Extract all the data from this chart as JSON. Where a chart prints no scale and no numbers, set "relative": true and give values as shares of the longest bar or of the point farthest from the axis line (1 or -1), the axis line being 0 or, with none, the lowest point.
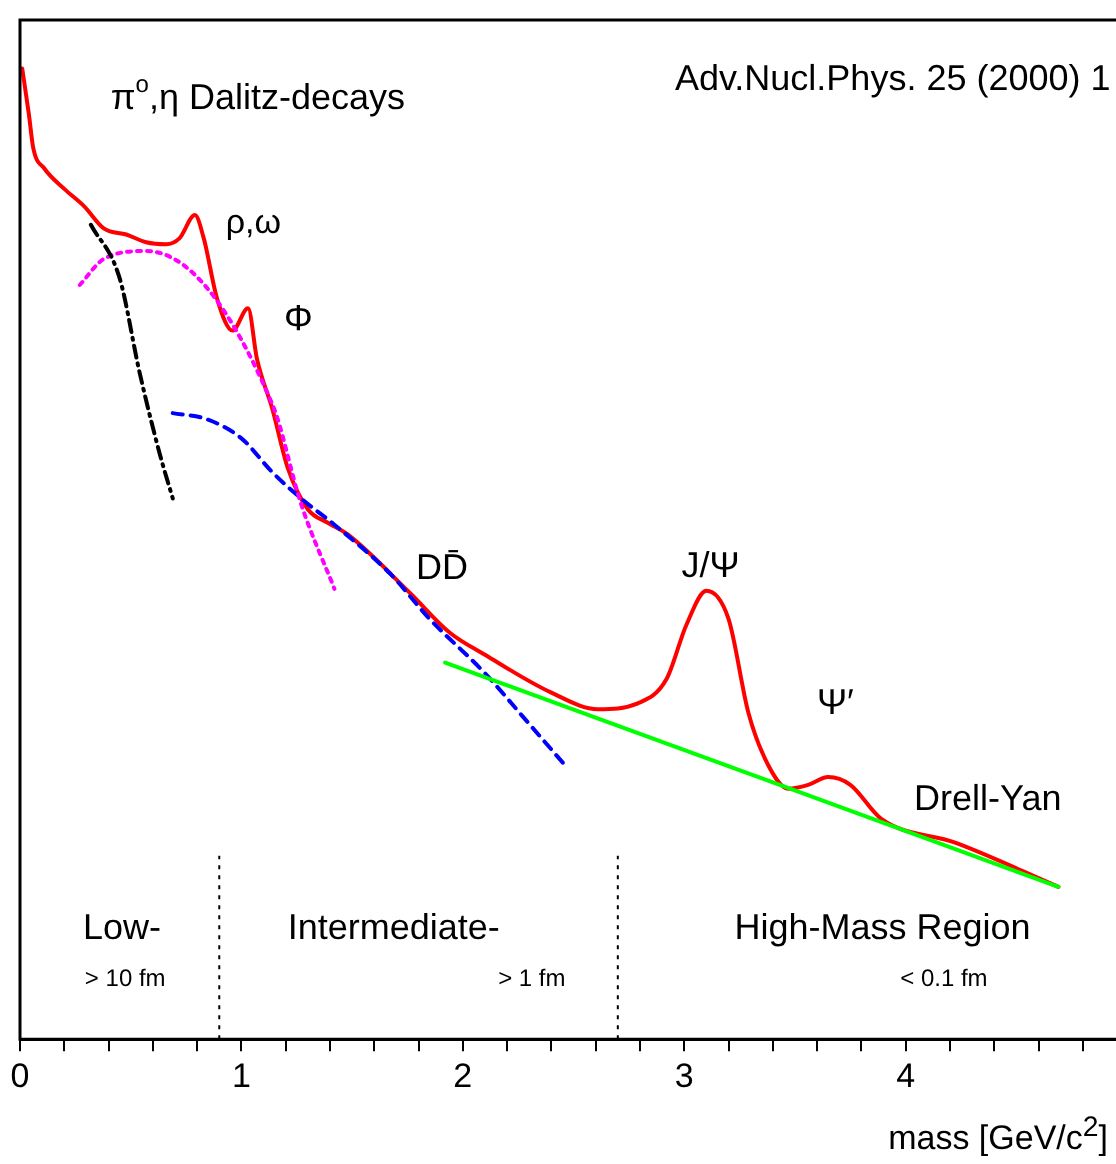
{
  "chart_data": {
    "type": "line",
    "relative": true,
    "xlabel": "mass [GeV/c$^{2}$]",
    "xlim": [
      0,
      4.95
    ],
    "xticks": [
      0,
      {
        "value": 0.2,
        "label": null
      },
      {
        "value": 0.4,
        "label": null
      },
      {
        "value": 0.6,
        "label": null
      },
      {
        "value": 0.8,
        "label": null
      },
      1,
      {
        "value": 1.2,
        "label": null
      },
      {
        "value": 1.4,
        "label": null
      },
      {
        "value": 1.6,
        "label": null
      },
      {
        "value": 1.8,
        "label": null
      },
      2,
      {
        "value": 2.2,
        "label": null
      },
      {
        "value": 2.4,
        "label": null
      },
      {
        "value": 2.6,
        "label": null
      },
      {
        "value": 2.8,
        "label": null
      },
      3,
      {
        "value": 3.2,
        "label": null
      },
      {
        "value": 3.4,
        "label": null
      },
      {
        "value": 3.6,
        "label": null
      },
      {
        "value": 3.8,
        "label": null
      },
      4,
      {
        "value": 4.2,
        "label": null
      },
      {
        "value": 4.4,
        "label": null
      },
      {
        "value": 4.6,
        "label": null
      },
      {
        "value": 4.8,
        "label": null
      }
    ],
    "grid": false,
    "legend": false,
    "marker": "none",
    "series": [
      {
        "color": "#00ff00",
        "line_style": "solid",
        "x": [
          1.92,
          4.69
        ],
        "values": [
          0.388,
          0.157
        ]
      },
      {
        "color": "#000000",
        "line_style": "dashdot",
        "x": [
          0.32,
          0.45,
          0.54,
          0.63,
          0.69
        ],
        "values": [
          0.839,
          0.784,
          0.687,
          0.604,
          0.557
        ]
      },
      {
        "color": "#ff00ff",
        "line_style": "dotted",
        "x": [
          0.27,
          0.38,
          0.57,
          1.14,
          1.27,
          1.42
        ],
        "values": [
          0.777,
          0.804,
          0.812,
          0.654,
          0.551,
          0.464
        ]
      },
      {
        "color": "#0000ff",
        "line_style": "dashed",
        "x": [
          0.69,
          0.84,
          1.0,
          1.14,
          1.27,
          1.42,
          1.67,
          1.85,
          2.1,
          2.28,
          2.47
        ],
        "values": [
          0.645,
          0.639,
          0.619,
          0.584,
          0.557,
          0.53,
          0.48,
          0.433,
          0.377,
          0.33,
          0.28
        ]
      },
      {
        "color": "#ff0000",
        "line_style": "solid",
        "x": [
          0.01,
          0.04,
          0.06,
          0.11,
          0.2,
          0.29,
          0.38,
          0.48,
          0.57,
          0.66,
          0.72,
          0.79,
          0.83,
          0.89,
          0.96,
          1.03,
          1.07,
          1.14,
          1.21,
          1.3,
          1.39,
          1.48,
          1.76,
          1.94,
          2.1,
          2.4,
          2.61,
          2.79,
          2.92,
          3.01,
          3.1,
          3.2,
          3.29,
          3.38,
          3.47,
          3.56,
          3.65,
          3.75,
          3.89,
          4.23,
          4.69
        ],
        "values": [
          1.0,
          0.953,
          0.918,
          0.897,
          0.876,
          0.858,
          0.835,
          0.829,
          0.821,
          0.819,
          0.825,
          0.849,
          0.825,
          0.763,
          0.73,
          0.753,
          0.701,
          0.649,
          0.588,
          0.546,
          0.532,
          0.52,
          0.46,
          0.419,
          0.396,
          0.357,
          0.34,
          0.346,
          0.371,
          0.427,
          0.462,
          0.433,
          0.336,
          0.282,
          0.258,
          0.262,
          0.27,
          0.262,
          0.227,
          0.202,
          0.157
        ]
      }
    ],
    "ref_lines": [
      {
        "axis": "x",
        "value": 0.9,
        "line_style": "dotted",
        "color": "#000000"
      },
      {
        "axis": "x",
        "value": 2.7,
        "line_style": "dotted",
        "color": "#000000"
      }
    ],
    "annotations": [
      "Adv.Nucl.Phys. 25 (2000) 1",
      "π$^{o}$,η Dalitz-decays",
      "ρ,ω",
      "Φ",
      "DD̄",
      "J/Ψ",
      "Ψ′",
      "Drell-Yan",
      "Low-",
      "> 10 fm",
      "Intermediate-",
      "> 1 fm",
      "High-Mass Region",
      "< 0.1 fm"
    ]
  }
}
